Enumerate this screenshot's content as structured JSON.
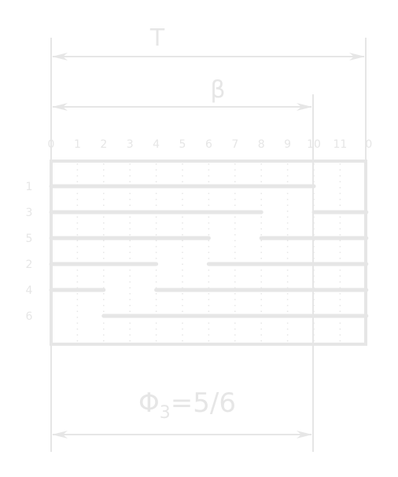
{
  "labels": {
    "period": "T",
    "beta": "β",
    "phi_symbol": "Φ",
    "phi_subscript": "3",
    "phi_value": "=5/6"
  },
  "tick_labels": [
    "0",
    "1",
    "2",
    "3",
    "4",
    "5",
    "6",
    "7",
    "8",
    "9",
    "10",
    "11",
    "0"
  ],
  "rows": [
    {
      "label": "1",
      "segments": [
        [
          0,
          10
        ]
      ]
    },
    {
      "label": "3",
      "segments": [
        [
          0,
          8
        ],
        [
          10,
          12
        ]
      ]
    },
    {
      "label": "5",
      "segments": [
        [
          0,
          6
        ],
        [
          8,
          12
        ]
      ]
    },
    {
      "label": "2",
      "segments": [
        [
          0,
          4
        ],
        [
          6,
          12
        ]
      ]
    },
    {
      "label": "4",
      "segments": [
        [
          0,
          2
        ],
        [
          4,
          12
        ]
      ]
    },
    {
      "label": "6",
      "segments": [
        [
          2,
          12
        ]
      ]
    }
  ],
  "slots": 12,
  "beta_slots": 10,
  "colors": {
    "line": "#e6e6e6",
    "dots": "#e6e6e6"
  }
}
